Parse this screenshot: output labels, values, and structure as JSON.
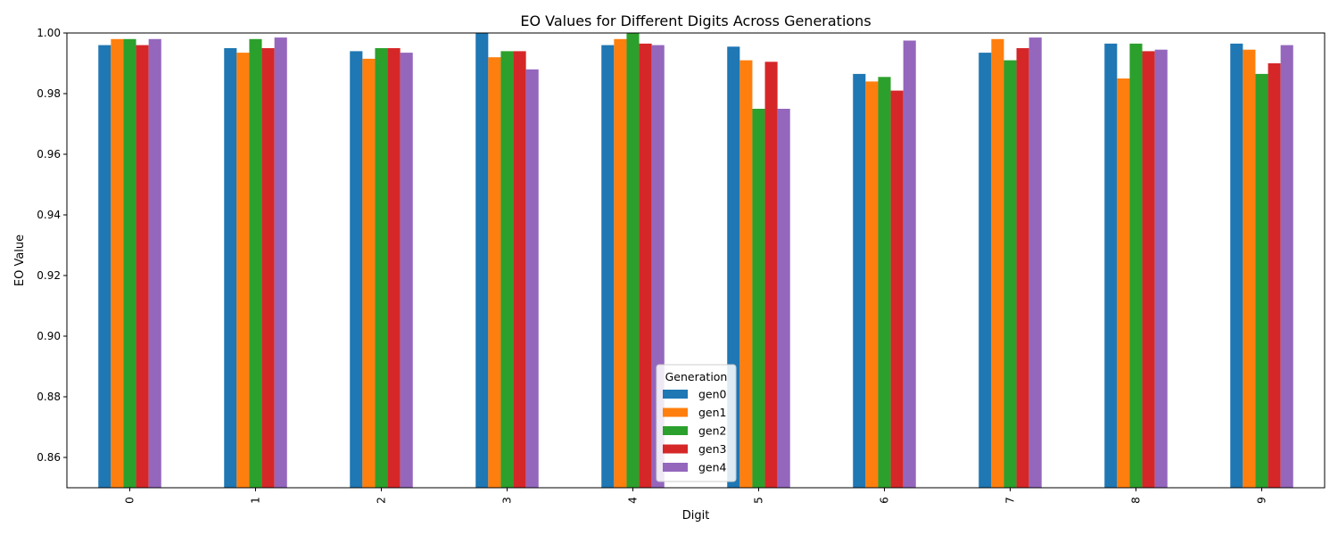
{
  "chart_data": {
    "type": "bar",
    "title": "EO Values for Different Digits Across Generations",
    "xlabel": "Digit",
    "ylabel": "EO Value",
    "ylim": [
      0.85,
      1.0
    ],
    "yticks": [
      "0.86",
      "0.88",
      "0.90",
      "0.92",
      "0.94",
      "0.96",
      "0.98",
      "1.00"
    ],
    "categories": [
      "0",
      "1",
      "2",
      "3",
      "4",
      "5",
      "6",
      "7",
      "8",
      "9"
    ],
    "grid": false,
    "legend": {
      "title": "Generation",
      "placement": "bottom-center"
    },
    "series": [
      {
        "name": "gen0",
        "color": "#1f77b4",
        "values": [
          0.996,
          0.995,
          0.994,
          1.0,
          0.996,
          0.9955,
          0.9865,
          0.9935,
          0.9965,
          0.9965
        ]
      },
      {
        "name": "gen1",
        "color": "#ff7f0e",
        "values": [
          0.998,
          0.9935,
          0.9915,
          0.992,
          0.998,
          0.991,
          0.984,
          0.998,
          0.985,
          0.9945
        ]
      },
      {
        "name": "gen2",
        "color": "#2ca02c",
        "values": [
          0.998,
          0.998,
          0.995,
          0.994,
          1.0,
          0.975,
          0.9855,
          0.991,
          0.9965,
          0.9865
        ]
      },
      {
        "name": "gen3",
        "color": "#d62728",
        "values": [
          0.996,
          0.995,
          0.995,
          0.994,
          0.9965,
          0.9905,
          0.981,
          0.995,
          0.994,
          0.99
        ]
      },
      {
        "name": "gen4",
        "color": "#9467bd",
        "values": [
          0.998,
          0.9985,
          0.9935,
          0.988,
          0.996,
          0.975,
          0.9975,
          0.9985,
          0.9945,
          0.996
        ]
      }
    ]
  }
}
